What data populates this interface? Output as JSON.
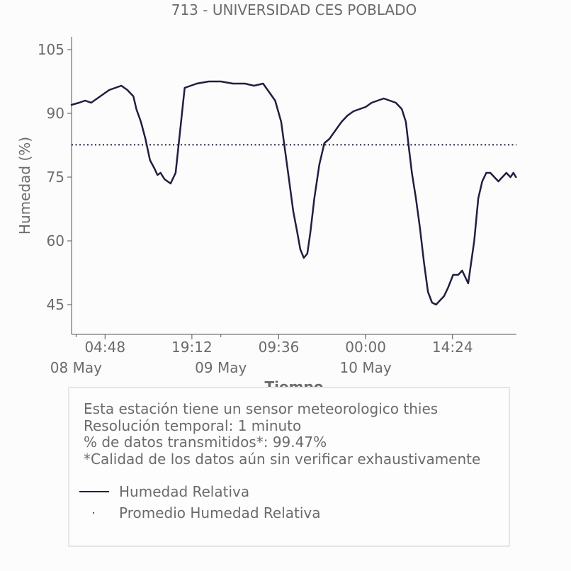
{
  "chart_data": {
    "type": "line",
    "title": "713 - UNIVERSIDAD CES POBLADO",
    "xlabel": "Tiempo",
    "ylabel": "Humedad (%)",
    "ylim": [
      38,
      108
    ],
    "xlim": [
      "2024-05-07T23:15",
      "2024-05-11T01:00"
    ],
    "x_tick_labels": [
      "04:48",
      "19:12",
      "09:36",
      "00:00",
      "14:24"
    ],
    "x_tick_values": [
      "2024-05-08T04:48",
      "2024-05-08T19:12",
      "2024-05-09T09:36",
      "2024-05-10T00:00",
      "2024-05-10T14:24"
    ],
    "x_date_labels": [
      "08 May",
      "09 May",
      "10 May"
    ],
    "x_date_values": [
      "2024-05-08T00:00",
      "2024-05-09T00:00",
      "2024-05-10T00:00"
    ],
    "y_ticks": [
      45,
      60,
      75,
      90,
      105
    ],
    "grid": false,
    "series": [
      {
        "name": "Humedad Relativa",
        "color": "#1f1f40",
        "style": "solid",
        "x": [
          "2024-05-07T23:15",
          "2024-05-08T00:30",
          "2024-05-08T01:30",
          "2024-05-08T02:30",
          "2024-05-08T03:30",
          "2024-05-08T04:30",
          "2024-05-08T05:30",
          "2024-05-08T06:30",
          "2024-05-08T07:30",
          "2024-05-08T08:30",
          "2024-05-08T09:30",
          "2024-05-08T10:00",
          "2024-05-08T10:45",
          "2024-05-08T11:30",
          "2024-05-08T12:15",
          "2024-05-08T13:00",
          "2024-05-08T13:30",
          "2024-05-08T14:00",
          "2024-05-08T14:40",
          "2024-05-08T15:10",
          "2024-05-08T15:40",
          "2024-05-08T16:30",
          "2024-05-08T18:00",
          "2024-05-08T20:00",
          "2024-05-08T22:00",
          "2024-05-09T00:00",
          "2024-05-09T02:00",
          "2024-05-09T04:00",
          "2024-05-09T05:30",
          "2024-05-09T07:00",
          "2024-05-09T07:30",
          "2024-05-09T08:00",
          "2024-05-09T09:00",
          "2024-05-09T10:00",
          "2024-05-09T10:40",
          "2024-05-09T11:20",
          "2024-05-09T12:00",
          "2024-05-09T12:40",
          "2024-05-09T13:10",
          "2024-05-09T13:45",
          "2024-05-09T14:20",
          "2024-05-09T14:50",
          "2024-05-09T15:30",
          "2024-05-09T16:20",
          "2024-05-09T17:10",
          "2024-05-09T18:00",
          "2024-05-09T19:00",
          "2024-05-09T20:00",
          "2024-05-09T21:00",
          "2024-05-09T22:00",
          "2024-05-09T23:00",
          "2024-05-10T00:00",
          "2024-05-10T01:00",
          "2024-05-10T02:00",
          "2024-05-10T03:00",
          "2024-05-10T04:00",
          "2024-05-10T05:00",
          "2024-05-10T06:00",
          "2024-05-10T06:40",
          "2024-05-10T07:10",
          "2024-05-10T07:40",
          "2024-05-10T08:20",
          "2024-05-10T09:00",
          "2024-05-10T09:40",
          "2024-05-10T10:20",
          "2024-05-10T11:00",
          "2024-05-10T11:40",
          "2024-05-10T12:20",
          "2024-05-10T13:00",
          "2024-05-10T13:40",
          "2024-05-10T14:30",
          "2024-05-10T15:20",
          "2024-05-10T16:00",
          "2024-05-10T17:00",
          "2024-05-10T18:00",
          "2024-05-10T18:40",
          "2024-05-10T19:20",
          "2024-05-10T20:00",
          "2024-05-10T20:40",
          "2024-05-10T21:20",
          "2024-05-10T22:00",
          "2024-05-10T22:40",
          "2024-05-10T23:20",
          "2024-05-11T00:00",
          "2024-05-11T00:30",
          "2024-05-11T00:55"
        ],
        "values": [
          92,
          92.5,
          93,
          92.5,
          93.5,
          94.5,
          95.5,
          96,
          96.5,
          95.5,
          94,
          91,
          88,
          84,
          79,
          77,
          75.5,
          76,
          74.5,
          74,
          73.5,
          76,
          96,
          97,
          97.5,
          97.5,
          97,
          97,
          96.5,
          97,
          96,
          95,
          93,
          88,
          81,
          74,
          67,
          62,
          58,
          56,
          57,
          62,
          70,
          78,
          83,
          84,
          86,
          88,
          89.5,
          90.5,
          91,
          91.5,
          92.5,
          93,
          93.5,
          93,
          92.5,
          91,
          88,
          82,
          76,
          70,
          63,
          55,
          48,
          45.5,
          45,
          46,
          47,
          49,
          52,
          52,
          53,
          50,
          60,
          70,
          74,
          76,
          76,
          75,
          74,
          75,
          76,
          75,
          76,
          75
        ]
      },
      {
        "name": "Promedio Humedad Relativa",
        "color": "#1f1f40",
        "style": "dotted",
        "value": 82.6
      }
    ]
  },
  "info": {
    "lines": [
      "Esta estación tiene un sensor meteorologico thies",
      "Resolución temporal: 1 minuto",
      "% de datos transmitidos*: 99.47%",
      "*Calidad de los datos aún sin verificar exhaustivamente"
    ]
  },
  "legend": {
    "items": [
      {
        "label": "Humedad Relativa",
        "style": "line"
      },
      {
        "label": "Promedio Humedad Relativa",
        "style": "dot"
      }
    ]
  }
}
